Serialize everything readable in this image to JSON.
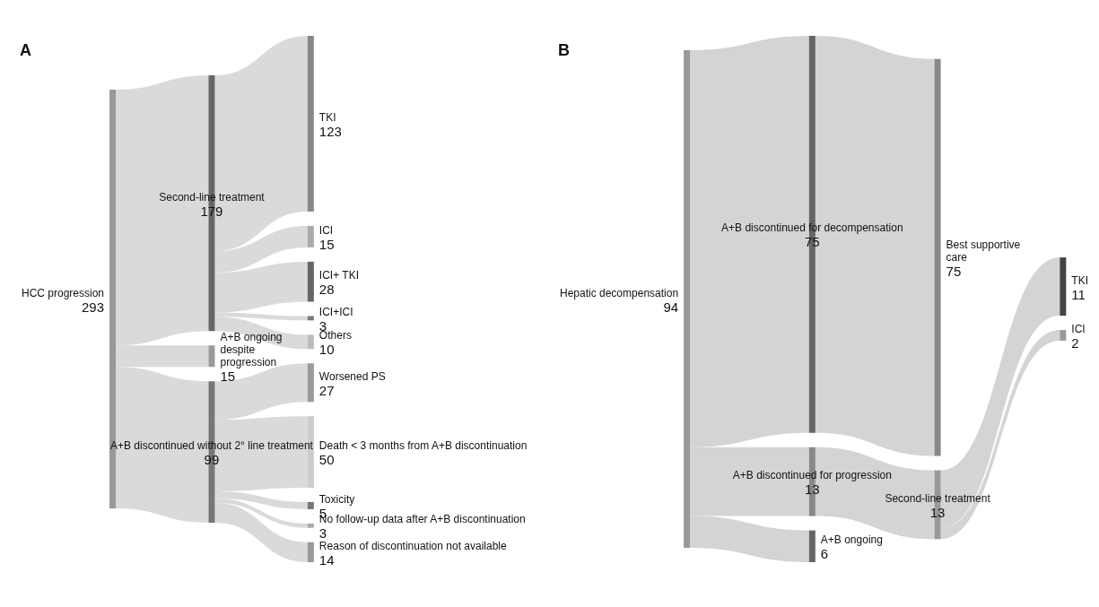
{
  "chart_data": [
    {
      "type": "other",
      "title": "A",
      "data_labels": true,
      "color": "#d4d4d4",
      "categories": [
        "HCC progression",
        "Second-line treatment",
        "A+B ongoing despite progression",
        "A+B discontinued without 2° line treatment",
        "TKI",
        "ICI",
        "ICI+ TKI",
        "ICI+ICI",
        "Others",
        "Worsened PS",
        "Death < 3 months from A+B discontinuation",
        "Toxicity",
        "No follow-up data after A+B discontinuation",
        "Reason of discontinuation not available"
      ],
      "values": [
        293,
        179,
        15,
        99,
        123,
        15,
        28,
        3,
        10,
        27,
        50,
        5,
        3,
        14
      ],
      "colors": [
        "#999999",
        "#666666",
        "#999999",
        "#777777",
        "#888888",
        "#aaaaaa",
        "#666666",
        "#777777",
        "#bbbbbb",
        "#999999",
        "#cccccc",
        "#777777",
        "#aaaaaa",
        "#999999"
      ]
    },
    {
      "type": "other",
      "title": "B",
      "data_labels": true,
      "color": "#cccccc",
      "categories": [
        "Hepatic decompensation",
        "A+B discontinued for decompensation",
        "A+B discontinued for progression",
        "A+B ongoing",
        "Best supportive care",
        "Second-line treatment",
        "TKI",
        "ICI"
      ],
      "values": [
        94,
        75,
        13,
        6,
        75,
        13,
        11,
        2
      ],
      "colors": [
        "#999999",
        "#666666",
        "#888888",
        "#666666",
        "#888888",
        "#999999",
        "#444444",
        "#999999"
      ]
    }
  ]
}
